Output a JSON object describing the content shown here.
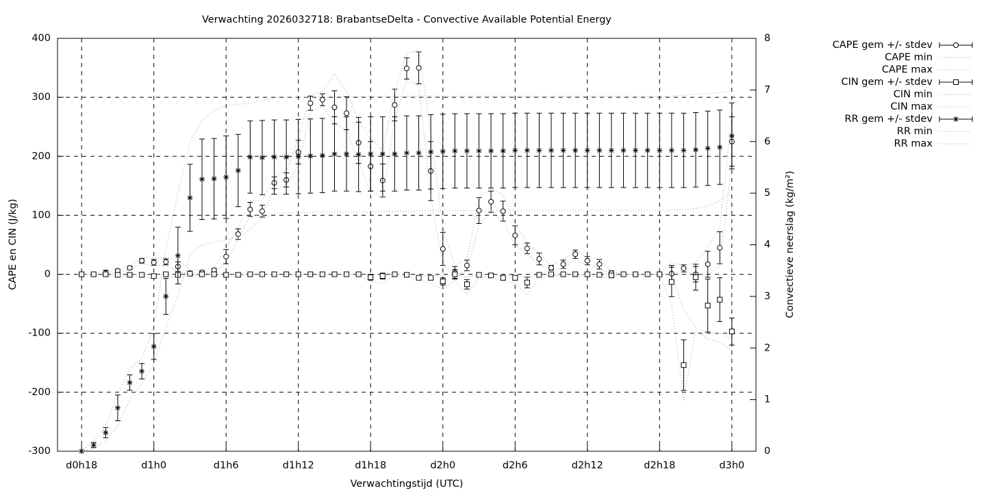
{
  "chart_data": {
    "type": "errorbar",
    "title": "Verwachting 2026032718: BrabantseDelta - Convective Available Potential Energy",
    "x_label": "Verwachtingstijd (UTC)",
    "y_label": "CAPE en CIN (J/kg)",
    "y2_label": "Convectieve neerslag (kg/m²)",
    "grid": true,
    "legend_position": "outside-right-top",
    "xlim": [
      16,
      74
    ],
    "xticks": [
      {
        "value": 18,
        "label": "d0h18"
      },
      {
        "value": 24,
        "label": "d1h0"
      },
      {
        "value": 30,
        "label": "d1h6"
      },
      {
        "value": 36,
        "label": "d1h12"
      },
      {
        "value": 42,
        "label": "d1h18"
      },
      {
        "value": 48,
        "label": "d2h0"
      },
      {
        "value": 54,
        "label": "d2h6"
      },
      {
        "value": 60,
        "label": "d2h12"
      },
      {
        "value": 66,
        "label": "d2h18"
      },
      {
        "value": 72,
        "label": "d3h0"
      }
    ],
    "ylim": [
      -300,
      400
    ],
    "yticks": [
      -300,
      -200,
      -100,
      0,
      100,
      200,
      300,
      400
    ],
    "y2lim": [
      0,
      8
    ],
    "y2ticks": [
      0,
      1,
      2,
      3,
      4,
      5,
      6,
      7,
      8
    ],
    "x": [
      18,
      19,
      20,
      21,
      22,
      23,
      24,
      25,
      26,
      27,
      28,
      29,
      30,
      31,
      32,
      33,
      34,
      35,
      36,
      37,
      38,
      39,
      40,
      41,
      42,
      43,
      44,
      45,
      46,
      47,
      48,
      49,
      50,
      51,
      52,
      53,
      54,
      55,
      56,
      57,
      58,
      59,
      60,
      61,
      62,
      63,
      64,
      65,
      66,
      67,
      68,
      69,
      70,
      71,
      72
    ],
    "series": [
      {
        "name": "CAPE gem +/- stdev",
        "color": "#000000",
        "style": "errorbars",
        "marker": "circle",
        "values": [
          0,
          0,
          2,
          6,
          11,
          23,
          20,
          21,
          13,
          2,
          3,
          7,
          30,
          68,
          110,
          107,
          155,
          160,
          207,
          290,
          296,
          283,
          273,
          223,
          183,
          159,
          287,
          349,
          350,
          175,
          43,
          3,
          15,
          108,
          123,
          107,
          66,
          44,
          26,
          11,
          17,
          34,
          23,
          17,
          2,
          0,
          0,
          0,
          0,
          1,
          10,
          0,
          17,
          45,
          225
        ],
        "errors": [
          2,
          2,
          5,
          3,
          3,
          4,
          5,
          5,
          8,
          3,
          3,
          3,
          12,
          9,
          12,
          10,
          10,
          12,
          20,
          12,
          10,
          28,
          28,
          35,
          42,
          28,
          27,
          18,
          27,
          50,
          28,
          10,
          9,
          22,
          18,
          17,
          16,
          9,
          10,
          4,
          7,
          7,
          7,
          8,
          4,
          1,
          1,
          1,
          1,
          14,
          6,
          13,
          22,
          27,
          42
        ]
      },
      {
        "name": "CAPE min",
        "color": "#999999",
        "style": "dotted",
        "values": [
          0,
          0,
          0,
          3,
          8,
          18,
          15,
          15,
          5,
          0,
          0,
          4,
          20,
          60,
          100,
          100,
          145,
          150,
          185,
          275,
          285,
          255,
          245,
          190,
          140,
          130,
          260,
          330,
          320,
          130,
          15,
          0,
          5,
          85,
          105,
          90,
          50,
          35,
          15,
          8,
          10,
          25,
          15,
          10,
          0,
          0,
          0,
          0,
          0,
          0,
          5,
          0,
          0,
          15,
          190
        ]
      },
      {
        "name": "CAPE max",
        "color": "#999999",
        "style": "dotted",
        "values": [
          0,
          0,
          3,
          8,
          15,
          28,
          28,
          28,
          25,
          8,
          8,
          10,
          45,
          80,
          125,
          125,
          165,
          175,
          230,
          305,
          310,
          340,
          310,
          260,
          230,
          210,
          310,
          375,
          380,
          240,
          80,
          15,
          25,
          130,
          145,
          135,
          85,
          55,
          35,
          15,
          25,
          40,
          30,
          25,
          5,
          0,
          0,
          0,
          0,
          20,
          15,
          20,
          45,
          80,
          270
        ]
      },
      {
        "name": "CIN gem +/- stdev",
        "color": "#000000",
        "style": "errorbars",
        "marker": "square",
        "values": [
          0,
          0,
          0,
          -1,
          -1,
          -1,
          -3,
          0,
          -1,
          1,
          0,
          0,
          -1,
          -1,
          0,
          0,
          0,
          0,
          0,
          0,
          0,
          0,
          0,
          0,
          -5,
          -3,
          0,
          -1,
          -6,
          -6,
          -12,
          0,
          -17,
          -1,
          -2,
          -6,
          -6,
          -14,
          -1,
          0,
          0,
          0,
          0,
          -1,
          -2,
          0,
          0,
          0,
          0,
          -13,
          -154,
          -5,
          -53,
          -43,
          -97
        ],
        "errors": [
          1,
          1,
          2,
          2,
          2,
          2,
          3,
          2,
          3,
          2,
          2,
          2,
          2,
          2,
          1,
          1,
          1,
          1,
          1,
          1,
          1,
          1,
          1,
          1,
          5,
          5,
          2,
          2,
          3,
          3,
          6,
          8,
          8,
          2,
          2,
          4,
          4,
          9,
          2,
          1,
          1,
          1,
          1,
          2,
          2,
          1,
          1,
          1,
          1,
          25,
          43,
          22,
          45,
          37,
          23
        ]
      },
      {
        "name": "CIN min",
        "color": "#999999",
        "style": "dotted",
        "values": [
          0,
          0,
          -3,
          -3,
          -3,
          -3,
          -8,
          -3,
          -5,
          -2,
          -2,
          -2,
          -3,
          -3,
          -1,
          -1,
          -1,
          -1,
          -1,
          -1,
          -1,
          -1,
          -1,
          -1,
          -12,
          -15,
          -2,
          -3,
          -10,
          -15,
          -25,
          -10,
          -35,
          -5,
          -5,
          -12,
          -15,
          -35,
          -5,
          -2,
          -2,
          -2,
          -2,
          -5,
          -5,
          -1,
          -1,
          -1,
          -1,
          -50,
          -215,
          -95,
          -110,
          -115,
          -130
        ]
      },
      {
        "name": "CIN max",
        "color": "#999999",
        "style": "dotted",
        "values": [
          0,
          0,
          0,
          0,
          0,
          0,
          0,
          0,
          0,
          0,
          0,
          0,
          0,
          0,
          0,
          0,
          0,
          0,
          0,
          0,
          0,
          0,
          0,
          0,
          0,
          0,
          0,
          0,
          -2,
          -2,
          -3,
          0,
          -5,
          0,
          0,
          -2,
          -2,
          -5,
          0,
          0,
          0,
          0,
          0,
          0,
          0,
          0,
          0,
          0,
          0,
          0,
          -60,
          -90,
          -100,
          -100,
          -110
        ]
      },
      {
        "name": "RR gem +/- stdev",
        "color": "#000000",
        "style": "errorbars",
        "marker": "star",
        "axis": "y2",
        "values": [
          0,
          0.12,
          0.36,
          0.84,
          1.33,
          1.55,
          2.03,
          3.0,
          3.79,
          4.91,
          5.27,
          5.28,
          5.31,
          5.44,
          5.7,
          5.69,
          5.7,
          5.7,
          5.71,
          5.72,
          5.73,
          5.76,
          5.76,
          5.75,
          5.76,
          5.76,
          5.76,
          5.78,
          5.78,
          5.8,
          5.81,
          5.82,
          5.82,
          5.82,
          5.82,
          5.82,
          5.83,
          5.83,
          5.83,
          5.83,
          5.83,
          5.83,
          5.83,
          5.83,
          5.83,
          5.83,
          5.83,
          5.83,
          5.83,
          5.83,
          5.83,
          5.84,
          5.87,
          5.89,
          6.11
        ],
        "errors": [
          0,
          0.05,
          0.1,
          0.25,
          0.15,
          0.15,
          0.25,
          0.35,
          0.55,
          0.65,
          0.78,
          0.78,
          0.8,
          0.7,
          0.7,
          0.72,
          0.72,
          0.72,
          0.72,
          0.72,
          0.72,
          0.72,
          0.72,
          0.72,
          0.72,
          0.72,
          0.72,
          0.72,
          0.72,
          0.72,
          0.72,
          0.72,
          0.72,
          0.72,
          0.72,
          0.72,
          0.72,
          0.72,
          0.72,
          0.72,
          0.72,
          0.72,
          0.72,
          0.72,
          0.72,
          0.72,
          0.72,
          0.72,
          0.72,
          0.72,
          0.72,
          0.72,
          0.72,
          0.72,
          0.64
        ]
      },
      {
        "name": "RR min",
        "color": "#999999",
        "style": "dotted",
        "axis": "y2",
        "values": [
          0,
          0.05,
          0.2,
          0.5,
          1.0,
          1.3,
          1.7,
          2.4,
          3.0,
          3.8,
          4.0,
          4.05,
          4.1,
          4.15,
          4.3,
          4.5,
          4.6,
          4.62,
          4.62,
          4.63,
          4.63,
          4.63,
          4.64,
          4.64,
          4.64,
          4.65,
          4.65,
          4.65,
          4.66,
          4.66,
          4.66,
          4.66,
          4.66,
          4.66,
          4.66,
          4.66,
          4.67,
          4.67,
          4.67,
          4.67,
          4.67,
          4.67,
          4.67,
          4.67,
          4.67,
          4.67,
          4.67,
          4.67,
          4.67,
          4.67,
          4.68,
          4.7,
          4.75,
          4.85,
          5.05
        ]
      },
      {
        "name": "RR max",
        "color": "#999999",
        "style": "dotted",
        "axis": "y2",
        "values": [
          0,
          0.2,
          0.5,
          1.1,
          1.6,
          1.8,
          2.4,
          3.9,
          5.0,
          6.0,
          6.4,
          6.6,
          6.7,
          6.72,
          6.75,
          6.8,
          6.85,
          6.85,
          6.86,
          6.86,
          6.86,
          6.87,
          6.87,
          6.87,
          6.87,
          6.87,
          6.87,
          6.88,
          6.88,
          6.88,
          6.88,
          6.88,
          6.88,
          6.88,
          6.88,
          6.88,
          6.88,
          6.88,
          6.88,
          6.88,
          6.88,
          6.88,
          6.88,
          6.88,
          6.88,
          6.88,
          6.88,
          6.88,
          6.88,
          6.88,
          6.9,
          6.92,
          6.93,
          6.95,
          6.98
        ]
      }
    ]
  }
}
